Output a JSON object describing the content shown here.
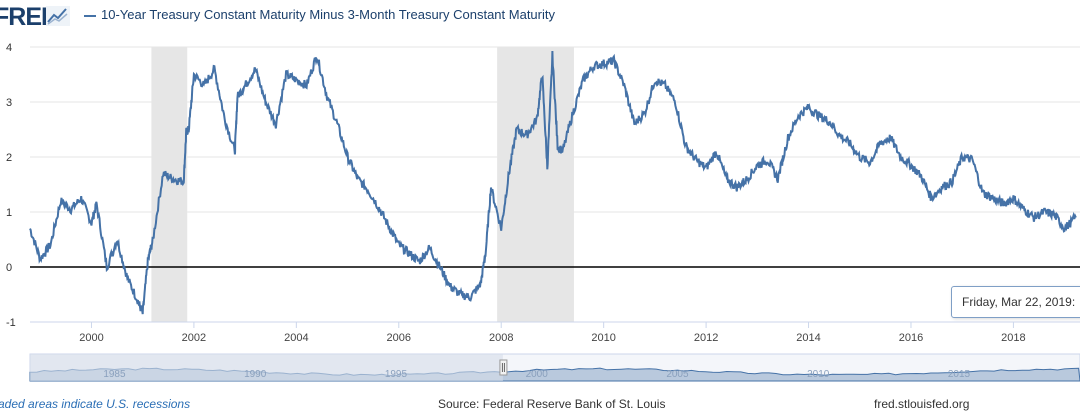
{
  "header": {
    "logo_text": "FRED",
    "logo_icon": "fred-trend-icon"
  },
  "chart_data": {
    "type": "line",
    "title": "",
    "xlabel": "",
    "ylabel": "",
    "xlim": [
      1998.8,
      2019.3
    ],
    "ylim": [
      -1,
      4
    ],
    "y_ticks": [
      "4",
      "3",
      "2",
      "1",
      "0",
      "-1"
    ],
    "x_ticks": [
      "2000",
      "2002",
      "2004",
      "2006",
      "2008",
      "2010",
      "2012",
      "2014",
      "2016",
      "2018"
    ],
    "grid": true,
    "legend_position": "top-left",
    "recession_shading": [
      [
        2001.17,
        2001.87
      ],
      [
        2007.92,
        2009.42
      ]
    ],
    "zero_line": 0,
    "series": [
      {
        "name": "10-Year Treasury Constant Maturity Minus 3-Month Treasury Constant Maturity",
        "color": "#4572a7",
        "x": [
          1998.8,
          1999.0,
          1999.2,
          1999.4,
          1999.6,
          1999.8,
          2000.0,
          2000.1,
          2000.3,
          2000.5,
          2000.7,
          2000.9,
          2001.0,
          2001.1,
          2001.2,
          2001.4,
          2001.6,
          2001.8,
          2001.85,
          2001.9,
          2002.0,
          2002.2,
          2002.4,
          2002.6,
          2002.8,
          2002.85,
          2003.0,
          2003.2,
          2003.4,
          2003.6,
          2003.8,
          2004.0,
          2004.2,
          2004.4,
          2004.6,
          2004.8,
          2005.0,
          2005.2,
          2005.4,
          2005.6,
          2005.8,
          2006.0,
          2006.2,
          2006.4,
          2006.6,
          2006.8,
          2007.0,
          2007.2,
          2007.4,
          2007.6,
          2007.7,
          2007.8,
          2008.0,
          2008.15,
          2008.3,
          2008.5,
          2008.7,
          2008.8,
          2008.9,
          2009.0,
          2009.1,
          2009.2,
          2009.4,
          2009.6,
          2009.8,
          2010.0,
          2010.2,
          2010.4,
          2010.6,
          2010.8,
          2011.0,
          2011.2,
          2011.4,
          2011.6,
          2011.8,
          2012.0,
          2012.2,
          2012.4,
          2012.6,
          2012.8,
          2013.0,
          2013.2,
          2013.4,
          2013.6,
          2013.8,
          2014.0,
          2014.2,
          2014.4,
          2014.6,
          2014.8,
          2015.0,
          2015.2,
          2015.4,
          2015.6,
          2015.8,
          2016.0,
          2016.2,
          2016.4,
          2016.6,
          2016.8,
          2017.0,
          2017.2,
          2017.4,
          2017.6,
          2017.8,
          2018.0,
          2018.2,
          2018.4,
          2018.6,
          2018.8,
          2019.0,
          2019.22
        ],
        "values": [
          0.7,
          0.15,
          0.4,
          1.2,
          1.05,
          1.25,
          0.8,
          1.15,
          0.0,
          0.5,
          -0.2,
          -0.6,
          -0.85,
          0.1,
          0.5,
          1.7,
          1.6,
          1.55,
          2.45,
          2.5,
          3.5,
          3.3,
          3.6,
          2.7,
          2.1,
          3.1,
          3.3,
          3.6,
          3.0,
          2.6,
          3.5,
          3.4,
          3.3,
          3.85,
          3.1,
          2.6,
          2.0,
          1.6,
          1.4,
          1.1,
          0.75,
          0.4,
          0.25,
          0.1,
          0.35,
          0.0,
          -0.35,
          -0.5,
          -0.55,
          -0.3,
          0.3,
          1.45,
          0.7,
          1.7,
          2.5,
          2.4,
          2.7,
          3.5,
          1.8,
          3.85,
          2.2,
          2.1,
          2.8,
          3.4,
          3.65,
          3.7,
          3.75,
          3.3,
          2.6,
          2.8,
          3.4,
          3.3,
          3.0,
          2.2,
          1.95,
          1.8,
          2.1,
          1.6,
          1.45,
          1.6,
          1.85,
          1.95,
          1.6,
          2.35,
          2.75,
          2.9,
          2.75,
          2.65,
          2.4,
          2.25,
          2.0,
          1.9,
          2.25,
          2.35,
          2.0,
          1.85,
          1.65,
          1.25,
          1.45,
          1.55,
          2.0,
          1.95,
          1.35,
          1.25,
          1.15,
          1.25,
          1.05,
          0.9,
          1.0,
          0.95,
          0.7,
          0.9
        ]
      }
    ]
  },
  "navigator": {
    "labels": [
      "1985",
      "1990",
      "1995",
      "2000",
      "2005",
      "2010",
      "2015"
    ]
  },
  "tooltip": {
    "text": "Friday, Mar 22, 2019:"
  },
  "footer": {
    "recession_note": "aded areas indicate U.S. recessions",
    "source": "Source: Federal Reserve Bank of St. Louis",
    "url": "fred.stlouisfed.org"
  },
  "colors": {
    "series": "#4572a7",
    "recession": "#e6e6e6",
    "grid": "#e6e6e6",
    "navigator_fill": "#b9c9dd",
    "navigator_mask": "#d5deea"
  }
}
